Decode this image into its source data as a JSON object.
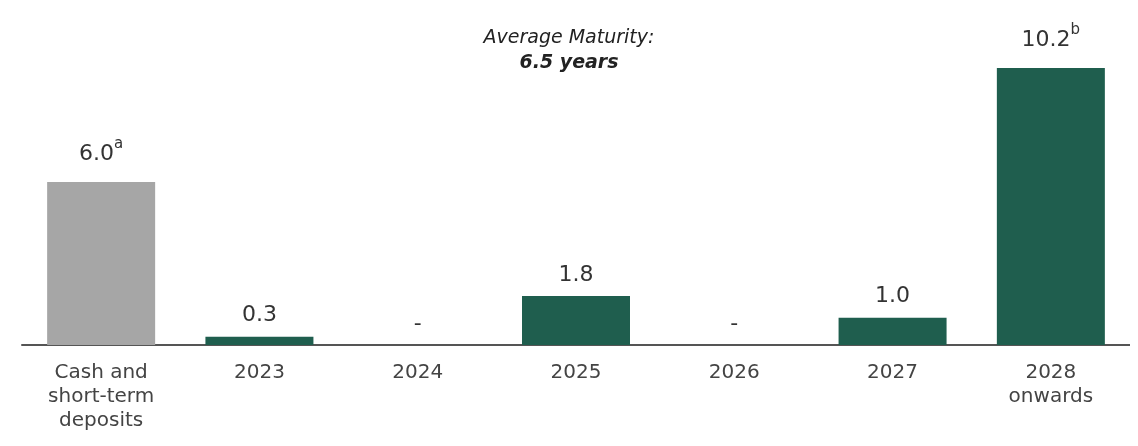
{
  "chart_data": {
    "type": "bar",
    "categories": [
      "Cash and\nshort-term\ndeposits",
      "2023",
      "2024",
      "2025",
      "2026",
      "2027",
      "2028\nonwards"
    ],
    "values": [
      6.0,
      0.3,
      0,
      1.8,
      0,
      1.0,
      10.2
    ],
    "colors": [
      "#a6a6a6",
      "#1f5e4e",
      "#1f5e4e",
      "#1f5e4e",
      "#1f5e4e",
      "#1f5e4e",
      "#1f5e4e"
    ],
    "value_labels": [
      "6.0$^{a}$",
      "0.3",
      "-",
      "1.8",
      "-",
      "1.0",
      "10.2$^{b}$"
    ],
    "annotations": [
      "Average Maturity:",
      "6.5 years"
    ]
  }
}
